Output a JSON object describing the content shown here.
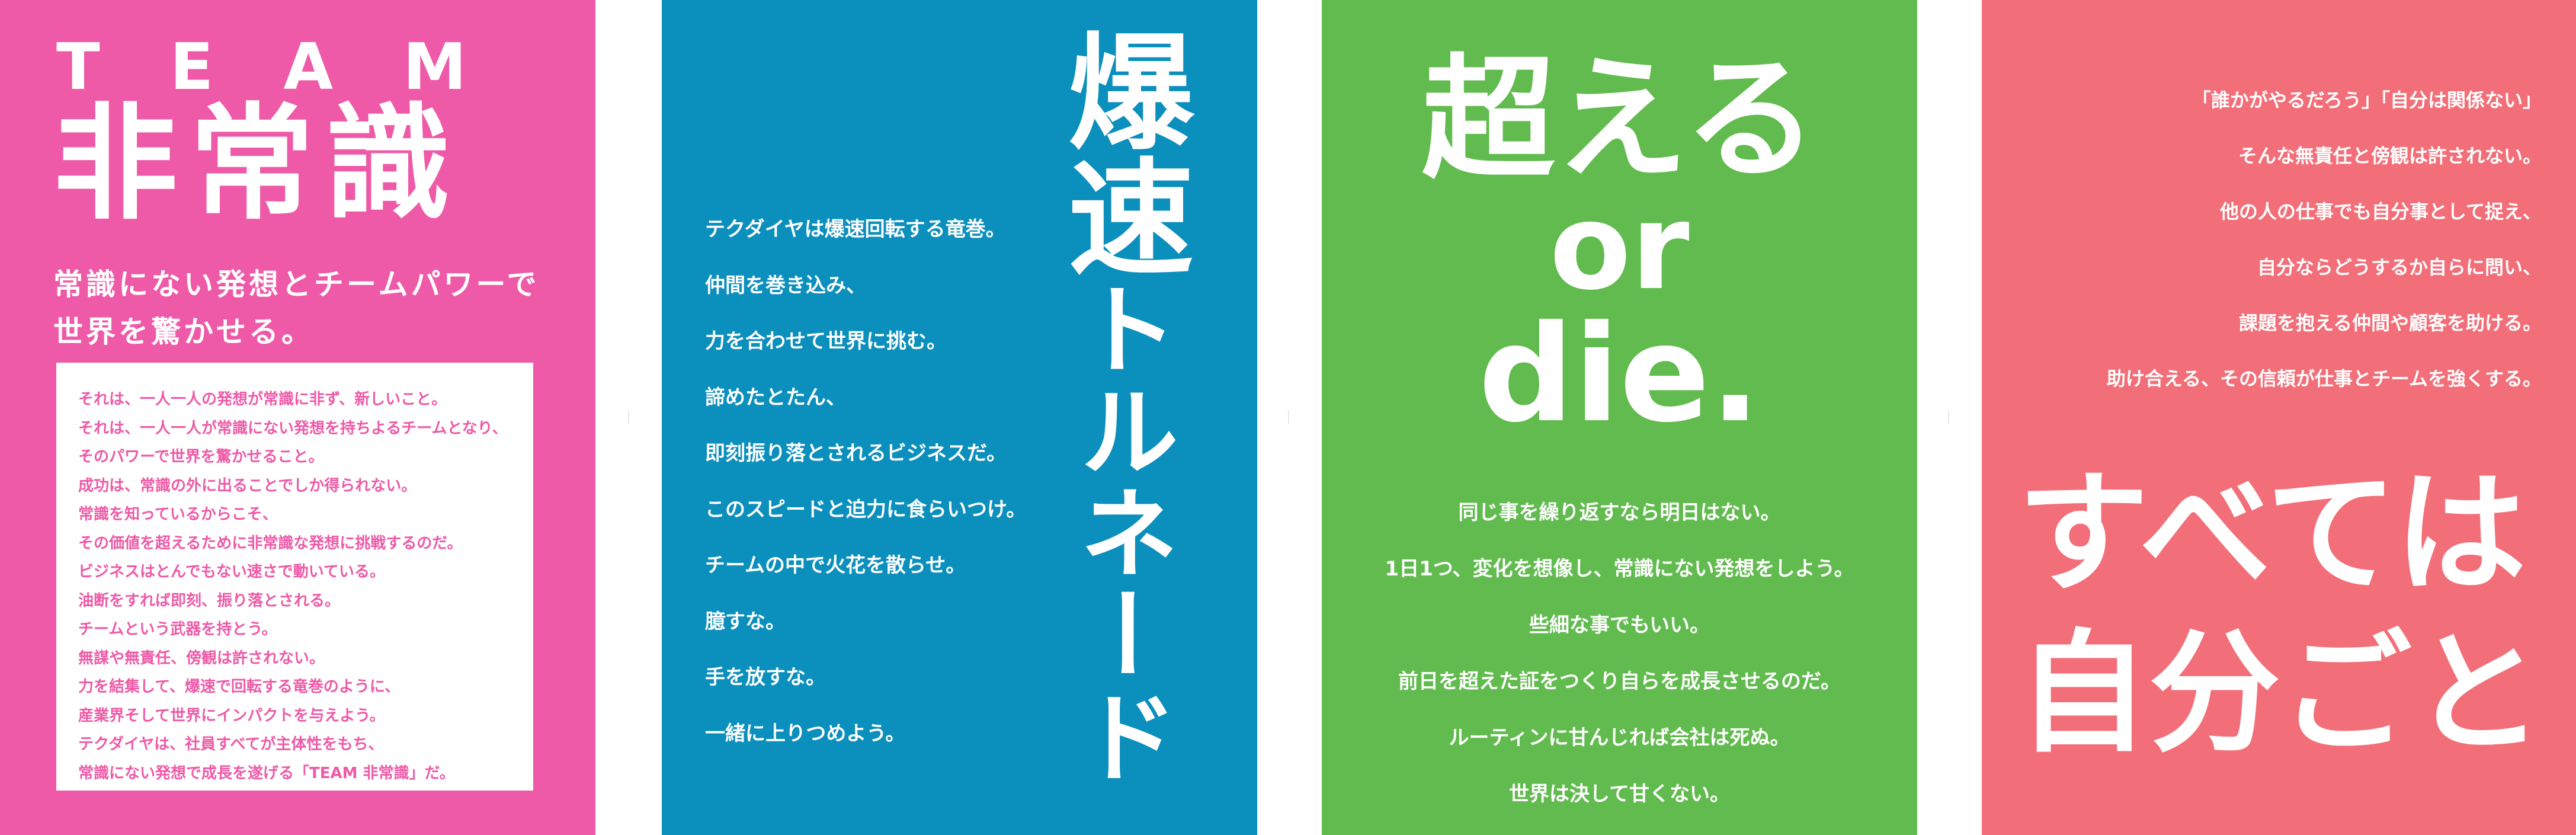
{
  "colors": {
    "panel1_bg": "#ee5aa7",
    "panel2_bg": "#0b8fbd",
    "panel3_bg": "#62bb4f",
    "panel4_bg": "#f26f79",
    "panel1_box_text": "#ee5aa7",
    "white": "#ffffff"
  },
  "panel1": {
    "team": "TEAM",
    "title": "非常識",
    "subtitle_lines": [
      "常識にない発想とチームパワーで",
      "世界を驚かせる。"
    ],
    "box_lines": [
      "それは、一人一人の発想が常識に非ず、新しいこと。",
      "それは、一人一人が常識にない発想を持ちよるチームとなり、",
      "そのパワーで世界を驚かせること。",
      "成功は、常識の外に出ることでしか得られない。",
      "常識を知っているからこそ、",
      "その価値を超えるために非常識な発想に挑戦するのだ。",
      "ビジネスはとんでもない速さで動いている。",
      "油断をすれば即刻、振り落とされる。",
      "チームという武器を持とう。",
      "無謀や無責任、傍観は許されない。",
      "力を結集して、爆速で回転する竜巻のように、",
      "産業界そして世界にインパクトを与えよう。",
      "テクダイヤは、社員すべてが主体性をもち、",
      "常識にない発想で成長を遂げる「TEAM 非常識」だ。"
    ]
  },
  "panel2": {
    "title_main": "爆速",
    "title_sub": "トルネード",
    "lines": [
      "テクダイヤは爆速回転する竜巻。",
      "仲間を巻き込み、",
      "力を合わせて世界に挑む。",
      "諦めたとたん、",
      "即刻振り落とされるビジネスだ。",
      "このスピードと迫力に食らいつけ。",
      "チームの中で火花を散らせ。",
      "臆すな。",
      "手を放すな。",
      "一緒に上りつめよう。"
    ]
  },
  "panel3": {
    "heading_line1": "超える",
    "heading_line2": "or",
    "heading_line3": "die.",
    "lines": [
      "同じ事を繰り返すなら明日はない。",
      "1日1つ、変化を想像し、常識にない発想をしよう。",
      "些細な事でもいい。",
      "前日を超えた証をつくり自らを成長させるのだ。",
      "ルーティンに甘んじれば会社は死ぬ。",
      "世界は決して甘くない。"
    ]
  },
  "panel4": {
    "lines": [
      "「誰かがやるだろう」「自分は関係ない」",
      "そんな無責任と傍観は許されない。",
      "他の人の仕事でも自分事として捉え、",
      "自分ならどうするか自らに問い、",
      "課題を抱える仲間や顧客を助ける。",
      "助け合える、その信頼が仕事とチームを強くする。"
    ],
    "heading_line1": "すべては",
    "heading_line2": "自分ごと"
  }
}
